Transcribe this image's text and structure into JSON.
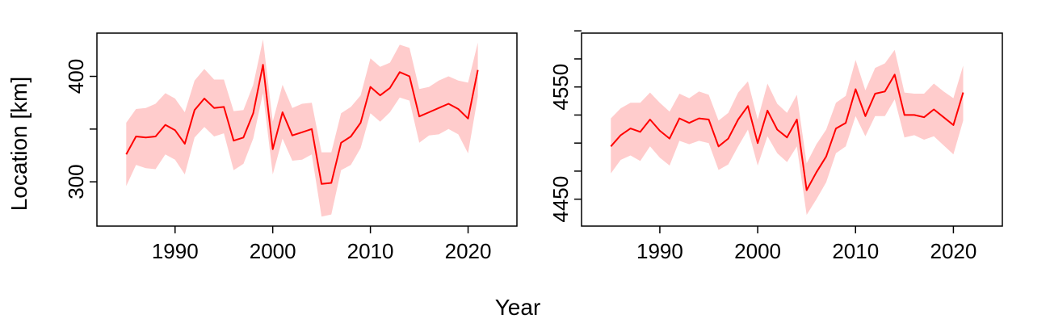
{
  "figure": {
    "xlabel": "Year",
    "ylabel": "Location [km]"
  },
  "chart_data": [
    {
      "type": "line",
      "line_color": "#ff0000",
      "band_color": "#ffcccc",
      "xlim": [
        1982,
        2025
      ],
      "ylim": [
        258,
        441
      ],
      "x_ticks": [
        1990,
        2000,
        2010,
        2020
      ],
      "y_ticks": [
        300,
        350,
        400
      ],
      "y_tick_labels": [
        "300",
        "",
        "400"
      ],
      "x": [
        1985,
        1986,
        1987,
        1988,
        1989,
        1990,
        1991,
        1992,
        1993,
        1994,
        1995,
        1996,
        1997,
        1998,
        1999,
        2000,
        2001,
        2002,
        2003,
        2004,
        2005,
        2006,
        2007,
        2008,
        2009,
        2010,
        2011,
        2012,
        2013,
        2014,
        2015,
        2016,
        2017,
        2018,
        2019,
        2020,
        2021
      ],
      "series": [
        {
          "values": [
            326,
            343,
            342,
            343,
            354,
            349,
            336,
            368,
            379,
            370,
            371,
            339,
            342,
            365,
            411,
            331,
            366,
            344,
            347,
            350,
            298,
            299,
            337,
            343,
            356,
            390,
            382,
            389,
            404,
            400,
            362,
            366,
            370,
            374,
            369,
            360,
            406
          ],
          "lower": [
            296,
            316,
            313,
            312,
            326,
            321,
            307,
            342,
            352,
            343,
            346,
            311,
            317,
            341,
            384,
            307,
            341,
            320,
            321,
            326,
            267,
            269,
            311,
            316,
            332,
            365,
            357,
            366,
            380,
            377,
            337,
            344,
            345,
            350,
            345,
            327,
            381
          ],
          "upper": [
            356,
            369,
            370,
            374,
            384,
            379,
            366,
            396,
            407,
            397,
            397,
            367,
            368,
            392,
            435,
            357,
            392,
            370,
            374,
            375,
            328,
            328,
            365,
            371,
            382,
            417,
            409,
            413,
            430,
            427,
            388,
            390,
            396,
            400,
            396,
            394,
            432
          ]
        }
      ]
    },
    {
      "type": "line",
      "line_color": "#ff0000",
      "band_color": "#ffcccc",
      "xlim": [
        1982,
        2025
      ],
      "ylim": [
        4426,
        4598
      ],
      "x_ticks": [
        1990,
        2000,
        2010,
        2020
      ],
      "y_ticks": [
        4450,
        4475,
        4500,
        4525,
        4550,
        4575,
        4600
      ],
      "y_tick_labels": [
        "4450",
        "",
        "",
        "",
        "4550",
        "",
        ""
      ],
      "x": [
        1985,
        1986,
        1987,
        1988,
        1989,
        1990,
        1991,
        1992,
        1993,
        1994,
        1995,
        1996,
        1997,
        1998,
        1999,
        2000,
        2001,
        2002,
        2003,
        2004,
        2005,
        2006,
        2007,
        2008,
        2009,
        2010,
        2011,
        2012,
        2013,
        2014,
        2015,
        2016,
        2017,
        2018,
        2019,
        2020,
        2021
      ],
      "series": [
        {
          "values": [
            4497,
            4507,
            4513,
            4510,
            4521,
            4511,
            4504,
            4522,
            4518,
            4522,
            4521,
            4497,
            4504,
            4521,
            4533,
            4500,
            4529,
            4512,
            4505,
            4521,
            4458,
            4474,
            4488,
            4513,
            4518,
            4548,
            4524,
            4544,
            4546,
            4561,
            4525,
            4525,
            4523,
            4530,
            4523,
            4516,
            4545
          ],
          "lower": [
            4473,
            4485,
            4489,
            4484,
            4497,
            4487,
            4480,
            4502,
            4499,
            4502,
            4500,
            4476,
            4481,
            4497,
            4512,
            4480,
            4506,
            4491,
            4483,
            4497,
            4436,
            4450,
            4465,
            4491,
            4497,
            4524,
            4506,
            4524,
            4524,
            4539,
            4505,
            4507,
            4503,
            4506,
            4498,
            4490,
            4520
          ],
          "upper": [
            4522,
            4531,
            4536,
            4536,
            4545,
            4536,
            4528,
            4544,
            4540,
            4546,
            4543,
            4520,
            4527,
            4545,
            4555,
            4521,
            4553,
            4535,
            4527,
            4543,
            4482,
            4499,
            4512,
            4536,
            4542,
            4574,
            4547,
            4567,
            4571,
            4583,
            4545,
            4544,
            4544,
            4553,
            4546,
            4540,
            4569
          ]
        }
      ]
    }
  ]
}
